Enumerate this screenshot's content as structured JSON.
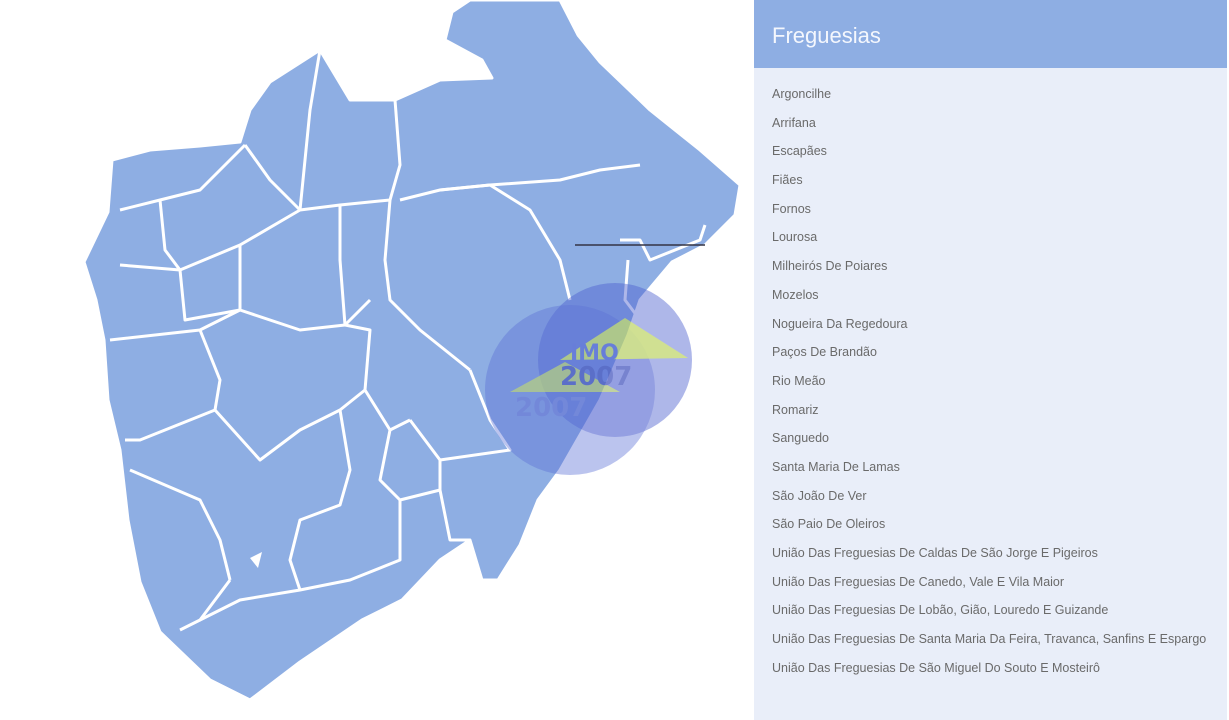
{
  "map": {
    "region_fill": "#8eaee3",
    "border_color": "#ffffff",
    "watermark": "IMO 2007"
  },
  "panel": {
    "title": "Freguesias",
    "header_color": "#8eaee3",
    "items": [
      "Argoncilhe",
      "Arrifana",
      "Escapães",
      "Fiães",
      "Fornos",
      "Lourosa",
      "Milheirós De Poiares",
      "Mozelos",
      "Nogueira Da Regedoura",
      "Paços De Brandão",
      "Rio Meão",
      "Romariz",
      "Sanguedo",
      "Santa Maria De Lamas",
      "São João De Ver",
      "São Paio De Oleiros",
      "União Das Freguesias De Caldas De São Jorge E Pigeiros",
      "União Das Freguesias De Canedo, Vale E Vila Maior",
      "União Das Freguesias De Lobão, Gião, Louredo E Guizande",
      "União Das Freguesias De Santa Maria Da Feira, Travanca, Sanfins E Espargo",
      "União Das Freguesias De São Miguel Do Souto E Mosteirô"
    ]
  }
}
